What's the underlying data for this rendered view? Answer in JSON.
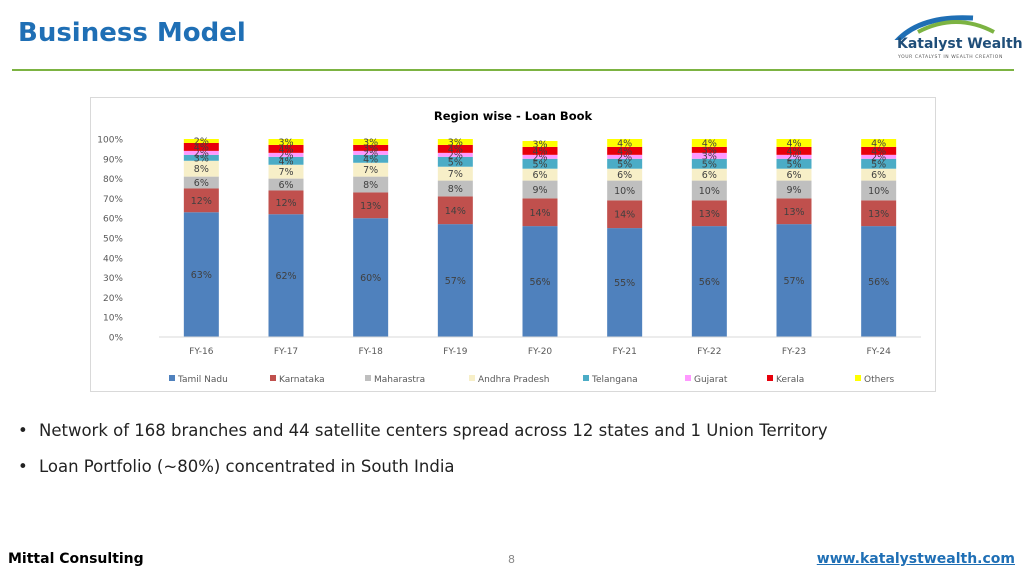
{
  "slide": {
    "title": "Business Model",
    "bullets": [
      "Network of 168 branches and 44 satellite centers spread across 12 states and 1 Union Territory",
      "Loan Portfolio (~80%) concentrated in South India"
    ],
    "footer_left": "Mittal Consulting",
    "page_number": "8",
    "footer_right": "www.katalystwealth.com"
  },
  "logo": {
    "brand": "Katalyst Wealth",
    "tagline": "YOUR CATALYST IN WEALTH CREATION",
    "colors": {
      "swoosh_blue": "#1f6fb5",
      "swoosh_green": "#7cb342"
    }
  },
  "colors": {
    "title": "#1f6fb5",
    "rule": "#7cb342",
    "link": "#1f6fb5"
  },
  "chart_data": {
    "type": "bar",
    "stacked": true,
    "title": "Region wise - Loan Book",
    "xlabel": "",
    "ylabel": "",
    "ylim": [
      0,
      100
    ],
    "y_ticks": [
      "0%",
      "10%",
      "20%",
      "30%",
      "40%",
      "50%",
      "60%",
      "70%",
      "80%",
      "90%",
      "100%"
    ],
    "grid": false,
    "legend_position": "bottom",
    "categories": [
      "FY-16",
      "FY-17",
      "FY-18",
      "FY-19",
      "FY-20",
      "FY-21",
      "FY-22",
      "FY-23",
      "FY-24"
    ],
    "series": [
      {
        "name": "Tamil Nadu",
        "color": "#4f81bd",
        "values": [
          63,
          62,
          60,
          57,
          56,
          55,
          56,
          57,
          56
        ]
      },
      {
        "name": "Karnataka",
        "color": "#c0504d",
        "values": [
          12,
          12,
          13,
          14,
          14,
          14,
          13,
          13,
          13
        ]
      },
      {
        "name": "Maharastra",
        "color": "#bfbfbf",
        "values": [
          6,
          6,
          8,
          8,
          9,
          10,
          10,
          9,
          10
        ]
      },
      {
        "name": "Andhra Pradesh",
        "color": "#f7efc8",
        "values": [
          8,
          7,
          7,
          7,
          6,
          6,
          6,
          6,
          6
        ]
      },
      {
        "name": "Telangana",
        "color": "#4bacc6",
        "values": [
          3,
          4,
          4,
          5,
          5,
          5,
          5,
          5,
          5
        ]
      },
      {
        "name": "Gujarat",
        "color": "#ff99ff",
        "values": [
          2,
          2,
          2,
          2,
          2,
          2,
          3,
          2,
          2
        ]
      },
      {
        "name": "Kerala",
        "color": "#e8000b",
        "values": [
          4,
          4,
          3,
          4,
          4,
          4,
          3,
          4,
          4
        ]
      },
      {
        "name": "Others",
        "color": "#ffff00",
        "values": [
          2,
          3,
          3,
          3,
          3,
          4,
          4,
          4,
          4
        ]
      }
    ]
  }
}
